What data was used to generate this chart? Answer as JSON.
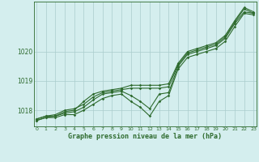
{
  "title": "Graphe pression niveau de la mer (hPa)",
  "x_labels": [
    "0",
    "1",
    "2",
    "3",
    "4",
    "5",
    "6",
    "7",
    "8",
    "9",
    "10",
    "11",
    "12",
    "13",
    "14",
    "15",
    "16",
    "17",
    "18",
    "19",
    "20",
    "21",
    "22",
    "23"
  ],
  "hours": [
    0,
    1,
    2,
    3,
    4,
    5,
    6,
    7,
    8,
    9,
    10,
    11,
    12,
    13,
    14,
    15,
    16,
    17,
    18,
    19,
    20,
    21,
    22,
    23
  ],
  "line1": [
    1017.7,
    1017.8,
    1017.8,
    1017.95,
    1018.0,
    1018.3,
    1018.55,
    1018.65,
    1018.7,
    1018.75,
    1018.85,
    1018.85,
    1018.85,
    1018.85,
    1018.9,
    1019.6,
    1020.0,
    1020.1,
    1020.2,
    1020.3,
    1020.55,
    1021.05,
    1021.5,
    1021.35
  ],
  "line2": [
    1017.7,
    1017.8,
    1017.85,
    1018.0,
    1018.05,
    1018.2,
    1018.45,
    1018.6,
    1018.65,
    1018.7,
    1018.75,
    1018.75,
    1018.75,
    1018.75,
    1018.8,
    1019.55,
    1019.95,
    1020.05,
    1020.15,
    1020.25,
    1020.5,
    1021.0,
    1021.45,
    1021.3
  ],
  "line3": [
    1017.65,
    1017.75,
    1017.8,
    1017.9,
    1017.95,
    1018.1,
    1018.35,
    1018.55,
    1018.6,
    1018.65,
    1018.5,
    1018.3,
    1018.05,
    1018.55,
    1018.6,
    1019.5,
    1019.9,
    1020.0,
    1020.1,
    1020.2,
    1020.45,
    1020.95,
    1021.35,
    1021.3
  ],
  "line4": [
    1017.65,
    1017.75,
    1017.75,
    1017.85,
    1017.85,
    1018.0,
    1018.2,
    1018.4,
    1018.5,
    1018.55,
    1018.3,
    1018.1,
    1017.8,
    1018.3,
    1018.5,
    1019.4,
    1019.8,
    1019.9,
    1020.0,
    1020.1,
    1020.35,
    1020.85,
    1021.3,
    1021.25
  ],
  "line_color": "#2d6a2d",
  "bg_color": "#d4eeee",
  "grid_color": "#aacccc",
  "ylim_min": 1017.45,
  "ylim_max": 1021.7,
  "yticks": [
    1018,
    1019,
    1020
  ],
  "marker": "D",
  "marker_size": 1.8,
  "linewidth": 0.8
}
